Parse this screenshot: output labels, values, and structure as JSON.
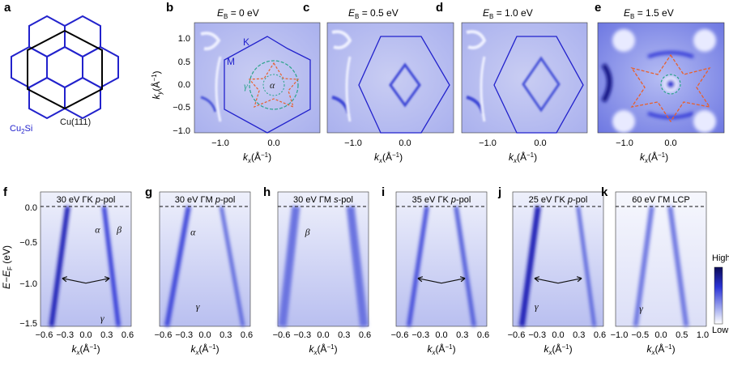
{
  "panel_a": {
    "letter": "a",
    "label_cu2si": "Cu",
    "label_cu2si_sub": "2",
    "label_cu2si_tail": "Si",
    "label_cu111": "Cu(111)"
  },
  "top_panels": [
    {
      "letter": "b",
      "title_prefix": "E",
      "title_sub": "B",
      "title_value": " = 0 eV",
      "marks": [
        "K",
        "M",
        "γ",
        "α"
      ]
    },
    {
      "letter": "c",
      "title_prefix": "E",
      "title_sub": "B",
      "title_value": " = 0.5 eV"
    },
    {
      "letter": "d",
      "title_prefix": "E",
      "title_sub": "B",
      "title_value": " = 1.0 eV"
    },
    {
      "letter": "e",
      "title_prefix": "E",
      "title_sub": "B",
      "title_value": " = 1.5 eV"
    }
  ],
  "top_axes": {
    "y_label_k": "k",
    "y_label_sub": "y",
    "y_label_unit": "(Å",
    "y_label_exp": "−1",
    "y_label_close": ")",
    "y_ticks": [
      "1.0",
      "0.5",
      "0.0",
      "−0.5",
      "−1.0"
    ],
    "x_ticks": [
      "−1.0",
      "0.0"
    ],
    "x_label_k": "k",
    "x_label_sub": "x",
    "x_label_unit": "(Å",
    "x_label_exp": "−1",
    "x_label_close": ")"
  },
  "bottom_panels": [
    {
      "letter": "f",
      "title": "30 eV  ΓK ",
      "pol": "p",
      "pol_tail": "-pol",
      "marks": [
        "α",
        "β",
        "γ"
      ],
      "x_ticks": [
        "−0.6",
        "−0.3",
        "0.0",
        "0.3",
        "0.6"
      ]
    },
    {
      "letter": "g",
      "title": "30 eV  ΓM ",
      "pol": "p",
      "pol_tail": "-pol",
      "marks": [
        "α",
        "γ"
      ],
      "x_ticks": [
        "−0.6",
        "−0.3",
        "0.0",
        "0.3",
        "0.6"
      ]
    },
    {
      "letter": "h",
      "title": "30 eV  ΓM ",
      "pol": "s",
      "pol_tail": "-pol",
      "marks": [
        "β"
      ],
      "x_ticks": [
        "−0.6",
        "−0.3",
        "0.0",
        "0.3",
        "0.6"
      ]
    },
    {
      "letter": "i",
      "title": "35 eV  ΓK ",
      "pol": "p",
      "pol_tail": "-pol",
      "marks": [],
      "x_ticks": [
        "−0.6",
        "−0.3",
        "0.0",
        "0.3",
        "0.6"
      ]
    },
    {
      "letter": "j",
      "title": "25 eV  ΓK ",
      "pol": "p",
      "pol_tail": "-pol",
      "marks": [
        "γ"
      ],
      "x_ticks": [
        "−0.6",
        "−0.3",
        "0.0",
        "0.3",
        "0.6"
      ]
    },
    {
      "letter": "k",
      "title": "60 eV  ΓM LCP",
      "pol": "",
      "pol_tail": "",
      "marks": [
        "γ"
      ],
      "x_ticks": [
        "−1.0",
        "−0.5",
        "0.0",
        "0.5",
        "1.0"
      ]
    }
  ],
  "bottom_axes": {
    "y_label": "E−E",
    "y_label_sub": "F",
    "y_label_unit": " (eV)",
    "y_ticks": [
      "0.0",
      "−0.5",
      "−1.0",
      "−1.5"
    ],
    "x_label_k": "k",
    "x_label_sub": "x",
    "x_label_unit": "(Å",
    "x_label_exp": "−1",
    "x_label_close": ")"
  },
  "colorbar": {
    "high": "High",
    "low": "Low"
  },
  "colors": {
    "blue_line": "#2222cc",
    "black_line": "#000000",
    "orange": "#e8602c",
    "teal": "#2aa38a",
    "map_bg": "#c8ccf2",
    "band_dark": "#1a1fb5"
  }
}
